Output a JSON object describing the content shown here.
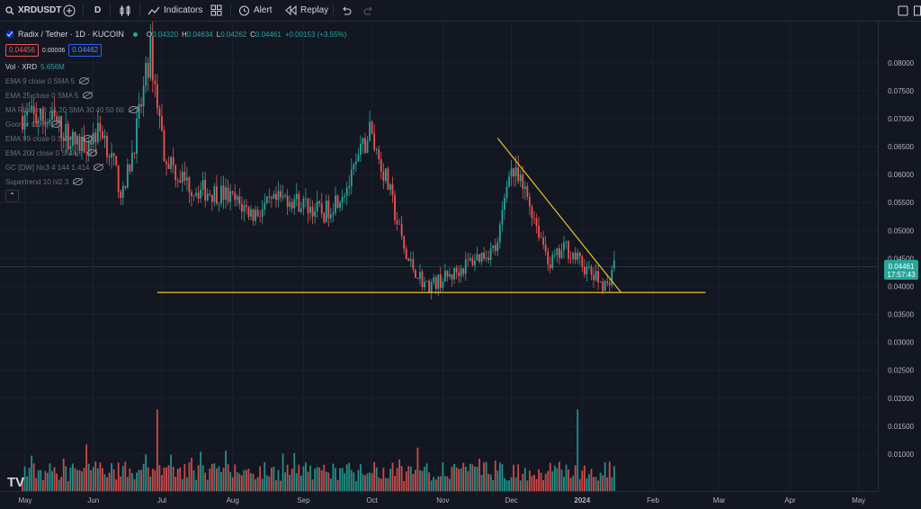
{
  "toolbar": {
    "symbol": "XRDUSDT",
    "interval": "D",
    "indicators_label": "Indicators",
    "alert_label": "Alert",
    "replay_label": "Replay"
  },
  "header": {
    "title": "Radix / Tether · 1D · KUCOIN",
    "o_label": "O",
    "o_value": "0.04320",
    "h_label": "H",
    "h_value": "0.04634",
    "l_label": "L",
    "l_value": "0.04262",
    "c_label": "C",
    "c_value": "0.04461",
    "change": "+0.00153 (+3.55%)",
    "bid": "0.04456",
    "spread": "0.00006",
    "ask": "0.04462"
  },
  "indicators": [
    {
      "label": "Vol · XRD",
      "value": "5.656M"
    },
    {
      "label": "EMA 9 close 0 SMA 5"
    },
    {
      "label": "EMA 25 close 0 SMA 5"
    },
    {
      "label": "MA Ribbon 8 14 20 SMA 30 40 50 60"
    },
    {
      "label": "Gooner EMA"
    },
    {
      "label": "EMA 99 close 0 SMA 5"
    },
    {
      "label": "EMA 200 close 0 SMA 5"
    },
    {
      "label": "GC [DW] hlc3 4 144 1.414"
    },
    {
      "label": "Supertrend 10 hl2 3"
    }
  ],
  "price_axis": {
    "ticks": [
      "0.08000",
      "0.07500",
      "0.07000",
      "0.06500",
      "0.06000",
      "0.05500",
      "0.05000",
      "0.04500",
      "0.04000",
      "0.03500",
      "0.03000",
      "0.02500",
      "0.02000",
      "0.01500",
      "0.01000"
    ],
    "last_price": "0.04461",
    "countdown": "17:57:43"
  },
  "time_axis": {
    "ticks": [
      "May",
      "Jun",
      "Jul",
      "Aug",
      "Sep",
      "Oct",
      "Nov",
      "Dec",
      "2024",
      "Feb",
      "Mar",
      "Apr",
      "May"
    ]
  },
  "colors": {
    "background": "#131722",
    "up": "#26a69a",
    "down": "#ef5350",
    "trendline": "#e6c229",
    "text": "#d1d4dc",
    "axis_text": "#b2b5be"
  },
  "chart_data": {
    "type": "candlestick",
    "title": "Radix / Tether · 1D · KUCOIN",
    "y_range": [
      0.005,
      0.0835
    ],
    "timeline": {
      "first_visible": "2023-05-01",
      "last_candle": "2024-01-15"
    },
    "trendlines": [
      {
        "kind": "resistance",
        "from": [
          "2023-11-25",
          0.0665
        ],
        "to": [
          "2024-01-18",
          0.0389
        ]
      },
      {
        "kind": "support",
        "from": [
          "2023-06-29",
          0.0389
        ],
        "to": [
          "2024-02-24",
          0.0389
        ]
      }
    ],
    "monthly_anchors": [
      {
        "date": "2023-05-01",
        "close": 0.0705
      },
      {
        "date": "2023-05-15",
        "close": 0.0695
      },
      {
        "date": "2023-05-25",
        "close": 0.065
      },
      {
        "date": "2023-06-05",
        "close": 0.068
      },
      {
        "date": "2023-06-14",
        "close": 0.056
      },
      {
        "date": "2023-06-20",
        "close": 0.068
      },
      {
        "date": "2023-06-26",
        "close": 0.082
      },
      {
        "date": "2023-07-02",
        "close": 0.064
      },
      {
        "date": "2023-07-08",
        "close": 0.06
      },
      {
        "date": "2023-07-15",
        "close": 0.0575
      },
      {
        "date": "2023-07-28",
        "close": 0.0565
      },
      {
        "date": "2023-08-10",
        "close": 0.053
      },
      {
        "date": "2023-08-25",
        "close": 0.056
      },
      {
        "date": "2023-09-10",
        "close": 0.053
      },
      {
        "date": "2023-09-22",
        "close": 0.059
      },
      {
        "date": "2023-09-30",
        "close": 0.068
      },
      {
        "date": "2023-10-08",
        "close": 0.058
      },
      {
        "date": "2023-10-16",
        "close": 0.045
      },
      {
        "date": "2023-10-25",
        "close": 0.04
      },
      {
        "date": "2023-11-05",
        "close": 0.042
      },
      {
        "date": "2023-11-15",
        "close": 0.045
      },
      {
        "date": "2023-11-25",
        "close": 0.047
      },
      {
        "date": "2023-11-30",
        "close": 0.0615
      },
      {
        "date": "2023-12-08",
        "close": 0.056
      },
      {
        "date": "2023-12-18",
        "close": 0.044
      },
      {
        "date": "2023-12-25",
        "close": 0.047
      },
      {
        "date": "2024-01-05",
        "close": 0.042
      },
      {
        "date": "2024-01-12",
        "close": 0.04
      },
      {
        "date": "2024-01-15",
        "close": 0.04461
      }
    ],
    "volume_peaks": [
      {
        "date": "2023-06-29",
        "note": "spike"
      },
      {
        "date": "2023-12-30",
        "note": "spike"
      }
    ]
  }
}
